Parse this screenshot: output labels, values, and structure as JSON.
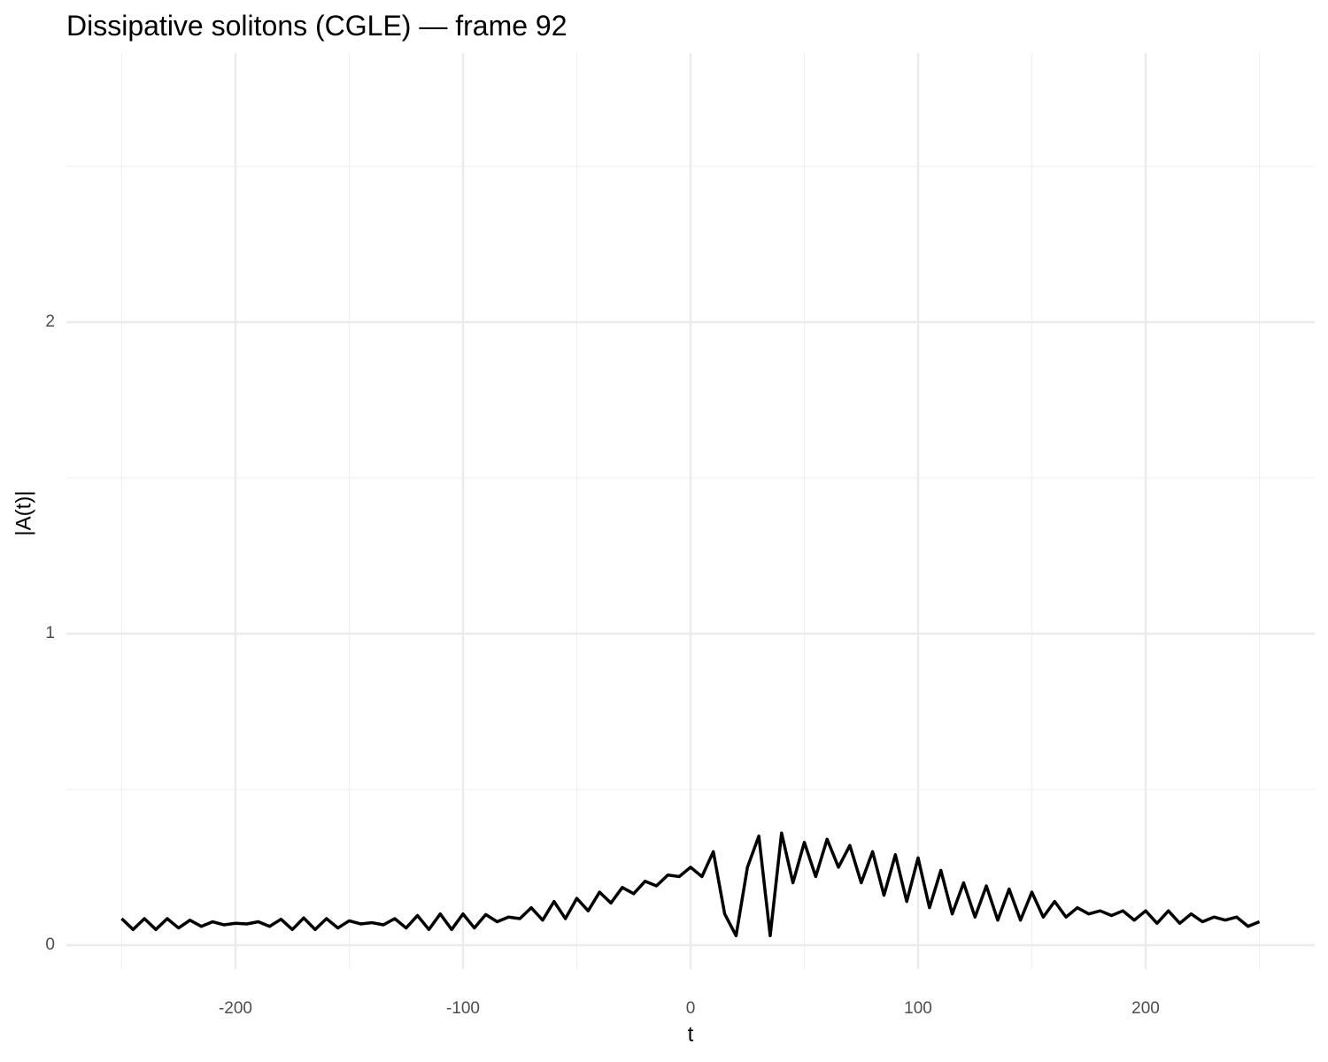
{
  "chart_data": {
    "type": "line",
    "title": "Dissipative solitons (CGLE) — frame 92",
    "x_label": "t",
    "y_label": "|A(t)|",
    "xlim": [
      -274.3,
      274.3
    ],
    "ylim": [
      -0.077,
      2.864
    ],
    "xticks": [
      -200,
      -100,
      0,
      100,
      200
    ],
    "yticks": [
      0,
      1,
      2
    ],
    "x_minor_grid": [
      -250,
      -150,
      -50,
      50,
      150,
      250
    ],
    "y_minor_grid": [
      0.5,
      1.5,
      2.5
    ],
    "grid": true,
    "series": [
      {
        "color": "#000000",
        "x": [
          -250,
          -245,
          -240,
          -235,
          -230,
          -225,
          -220,
          -215,
          -210,
          -205,
          -200,
          -195,
          -190,
          -185,
          -180,
          -175,
          -170,
          -165,
          -160,
          -155,
          -150,
          -145,
          -140,
          -135,
          -130,
          -125,
          -120,
          -115,
          -110,
          -105,
          -100,
          -95,
          -90,
          -85,
          -80,
          -75,
          -70,
          -65,
          -60,
          -55,
          -50,
          -45,
          -40,
          -35,
          -30,
          -25,
          -20,
          -15,
          -10,
          -5,
          0,
          5,
          10,
          15,
          20,
          25,
          30,
          35,
          40,
          45,
          50,
          55,
          60,
          65,
          70,
          75,
          80,
          85,
          90,
          95,
          100,
          105,
          110,
          115,
          120,
          125,
          130,
          135,
          140,
          145,
          150,
          155,
          160,
          165,
          170,
          175,
          180,
          185,
          190,
          195,
          200,
          205,
          210,
          215,
          220,
          225,
          230,
          235,
          240,
          245,
          250
        ],
        "values": [
          0.085,
          0.05,
          0.085,
          0.05,
          0.085,
          0.055,
          0.08,
          0.06,
          0.075,
          0.065,
          0.07,
          0.068,
          0.075,
          0.06,
          0.083,
          0.05,
          0.087,
          0.05,
          0.085,
          0.055,
          0.078,
          0.068,
          0.072,
          0.065,
          0.085,
          0.055,
          0.095,
          0.05,
          0.1,
          0.05,
          0.1,
          0.055,
          0.098,
          0.075,
          0.09,
          0.085,
          0.12,
          0.08,
          0.14,
          0.085,
          0.15,
          0.11,
          0.17,
          0.135,
          0.185,
          0.165,
          0.205,
          0.19,
          0.225,
          0.22,
          0.25,
          0.22,
          0.3,
          0.1,
          0.03,
          0.25,
          0.35,
          0.03,
          0.36,
          0.2,
          0.33,
          0.22,
          0.34,
          0.25,
          0.32,
          0.2,
          0.3,
          0.16,
          0.29,
          0.14,
          0.28,
          0.12,
          0.24,
          0.1,
          0.2,
          0.09,
          0.19,
          0.08,
          0.18,
          0.08,
          0.17,
          0.09,
          0.14,
          0.09,
          0.12,
          0.1,
          0.11,
          0.095,
          0.11,
          0.08,
          0.11,
          0.07,
          0.11,
          0.07,
          0.1,
          0.075,
          0.09,
          0.08,
          0.09,
          0.06,
          0.075
        ]
      }
    ]
  }
}
